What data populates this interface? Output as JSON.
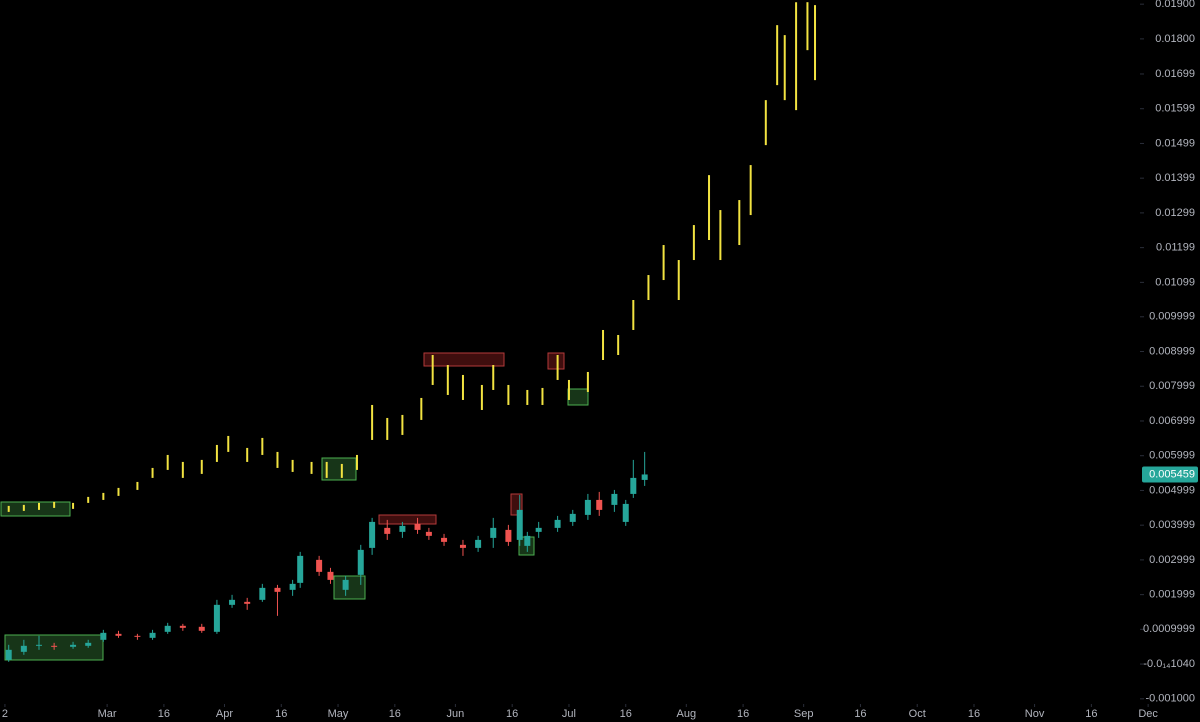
{
  "chart_data": {
    "type": "candlestick",
    "xlim": [
      -0.3,
      316.7
    ],
    "ylim": [
      -0.00115,
      0.01912
    ],
    "xticks": [
      {
        "value": 1,
        "label": "2"
      },
      {
        "value": 28,
        "label": "Mar"
      },
      {
        "value": 43,
        "label": "16"
      },
      {
        "value": 59,
        "label": "Apr"
      },
      {
        "value": 74,
        "label": "16"
      },
      {
        "value": 89,
        "label": "May"
      },
      {
        "value": 104,
        "label": "16"
      },
      {
        "value": 120,
        "label": "Jun"
      },
      {
        "value": 135,
        "label": "16"
      },
      {
        "value": 150,
        "label": "Jul"
      },
      {
        "value": 165,
        "label": "16"
      },
      {
        "value": 181,
        "label": "Aug"
      },
      {
        "value": 196,
        "label": "16"
      },
      {
        "value": 212,
        "label": "Sep"
      },
      {
        "value": 227,
        "label": "16"
      },
      {
        "value": 242,
        "label": "Oct"
      },
      {
        "value": 257,
        "label": "16"
      },
      {
        "value": 273,
        "label": "Nov"
      },
      {
        "value": 288,
        "label": "16"
      },
      {
        "value": 303,
        "label": "Dec"
      }
    ],
    "yticks": [
      {
        "value": 0.019,
        "label": "0.01900"
      },
      {
        "value": 0.018,
        "label": "0.01800"
      },
      0.01699,
      0.01599,
      0.01499,
      0.01399,
      0.01299,
      0.01199,
      0.01099,
      0.009999,
      0.008999,
      0.007999,
      0.006999,
      0.005999,
      0.004999,
      0.003999,
      0.002999,
      0.001999,
      0.0009999,
      {
        "value": -1.04e-14,
        "label": "-0.0₁₄1040"
      },
      {
        "value": -0.001,
        "label": "-0.001000"
      }
    ],
    "series": [
      {
        "type": "ohlc-bar",
        "color": "#f2e341",
        "x": [
          2,
          6,
          10,
          14,
          19,
          23,
          27,
          31,
          36,
          40,
          44,
          48,
          53,
          57,
          60,
          65,
          69,
          73,
          77,
          82,
          86,
          90,
          94,
          98,
          102,
          106,
          111,
          114,
          118,
          122,
          127,
          130,
          134,
          139,
          143,
          147,
          150,
          155,
          159,
          163,
          167,
          171,
          175,
          179,
          183,
          187,
          190,
          195,
          198,
          202,
          205,
          207,
          210,
          213,
          215
        ],
        "high": [
          0.004554,
          0.004583,
          0.00464,
          0.004669,
          0.00464,
          0.004813,
          0.004928,
          0.005072,
          0.005244,
          0.005647,
          0.006021,
          0.00582,
          0.005878,
          0.006309,
          0.006568,
          0.006223,
          0.006511,
          0.006108,
          0.005878,
          0.00582,
          0.00582,
          0.005762,
          0.006021,
          0.00746,
          0.007086,
          0.007173,
          0.007662,
          0.008899,
          0.008611,
          0.008324,
          0.008036,
          0.008611,
          0.008036,
          0.007892,
          0.00795,
          0.008899,
          0.00818,
          0.00841,
          0.009619,
          0.009475,
          0.010482,
          0.011201,
          0.012065,
          0.011633,
          0.01264,
          0.014079,
          0.013072,
          0.01336,
          0.014367,
          0.016237,
          0.018396,
          0.018108,
          0.019057,
          0.019057,
          0.018971
        ],
        "low": [
          0.004381,
          0.00441,
          0.004439,
          0.004496,
          0.004468,
          0.00464,
          0.004726,
          0.004842,
          0.005014,
          0.00536,
          0.00559,
          0.00536,
          0.005475,
          0.00582,
          0.006108,
          0.00582,
          0.006021,
          0.005647,
          0.005532,
          0.005475,
          0.00536,
          0.00536,
          0.00559,
          0.006453,
          0.006453,
          0.006597,
          0.007029,
          0.008036,
          0.007748,
          0.007604,
          0.007316,
          0.007892,
          0.00746,
          0.00746,
          0.00746,
          0.00818,
          0.007604,
          0.007834,
          0.008755,
          0.008899,
          0.009619,
          0.010482,
          0.011057,
          0.010482,
          0.011633,
          0.012209,
          0.011633,
          0.012065,
          0.012928,
          0.014942,
          0.016669,
          0.016237,
          0.01595,
          0.017676,
          0.016813
        ]
      },
      {
        "type": "candlestick",
        "up_color": "#26a69a",
        "down_color": "#ef5350",
        "x": [
          2,
          6,
          10,
          14,
          19,
          23,
          27,
          31,
          36,
          40,
          44,
          48,
          53,
          57,
          61,
          65,
          69,
          73,
          77,
          79,
          84,
          87,
          91,
          95,
          98,
          102,
          106,
          110,
          113,
          117,
          122,
          126,
          130,
          134,
          137,
          139,
          142,
          147,
          151,
          155,
          158,
          162,
          165,
          167,
          170
        ],
        "open": [
          0.000122,
          0.000352,
          0.000525,
          0.000525,
          0.000496,
          0.000525,
          0.000698,
          0.00087,
          0.000813,
          0.000755,
          0.000928,
          0.001101,
          0.001072,
          0.000928,
          0.001705,
          0.001791,
          0.001849,
          0.002194,
          0.002137,
          0.002338,
          0.003,
          0.002655,
          0.002137,
          0.002568,
          0.003345,
          0.003921,
          0.003806,
          0.004035,
          0.003806,
          0.003633,
          0.003432,
          0.003345,
          0.003633,
          0.003863,
          0.003575,
          0.003403,
          0.003806,
          0.003921,
          0.004093,
          0.004295,
          0.004726,
          0.004583,
          0.004093,
          0.004899,
          0.005302
        ],
        "high": [
          0.000554,
          0.000698,
          0.000813,
          0.000611,
          0.00064,
          0.000698,
          0.000985,
          0.000957,
          0.00087,
          0.000985,
          0.001187,
          0.001158,
          0.001158,
          0.001849,
          0.001993,
          0.001906,
          0.002309,
          0.00228,
          0.002424,
          0.00323,
          0.003115,
          0.00277,
          0.002539,
          0.003432,
          0.004209,
          0.004151,
          0.004093,
          0.004209,
          0.003921,
          0.003748,
          0.003575,
          0.003691,
          0.004209,
          0.004007,
          0.00487,
          0.003806,
          0.004093,
          0.004266,
          0.004439,
          0.004899,
          0.004957,
          0.005014,
          0.004726,
          0.005878,
          0.006108
        ],
        "low": [
          6.5e-05,
          0.000266,
          0.00041,
          0.00041,
          0.000439,
          0.000468,
          0.00064,
          0.000755,
          0.000698,
          0.000698,
          0.00087,
          0.000957,
          0.000899,
          0.00087,
          0.001619,
          0.001561,
          0.001791,
          0.001388,
          0.001964,
          0.002194,
          0.002539,
          0.002309,
          0.001964,
          0.00228,
          0.003144,
          0.003575,
          0.003633,
          0.003748,
          0.003575,
          0.003403,
          0.003115,
          0.00323,
          0.003345,
          0.003403,
          0.003403,
          0.00323,
          0.003633,
          0.003806,
          0.003978,
          0.004151,
          0.004266,
          0.004381,
          0.003978,
          0.004784,
          0.005129
        ],
        "close": [
          0.00041,
          0.000525,
          0.000554,
          0.000496,
          0.000554,
          0.000611,
          0.000899,
          0.000813,
          0.000784,
          0.000899,
          0.001101,
          0.001043,
          0.000957,
          0.001705,
          0.001849,
          0.001734,
          0.002194,
          0.002079,
          0.002309,
          0.003115,
          0.002655,
          0.002424,
          0.002424,
          0.003288,
          0.004093,
          0.003748,
          0.003978,
          0.003863,
          0.003691,
          0.003518,
          0.003345,
          0.003575,
          0.003921,
          0.003518,
          0.004439,
          0.003691,
          0.003921,
          0.004151,
          0.004324,
          0.004726,
          0.004439,
          0.004899,
          0.004611,
          0.00536,
          0.005459
        ]
      }
    ]
  }
}
